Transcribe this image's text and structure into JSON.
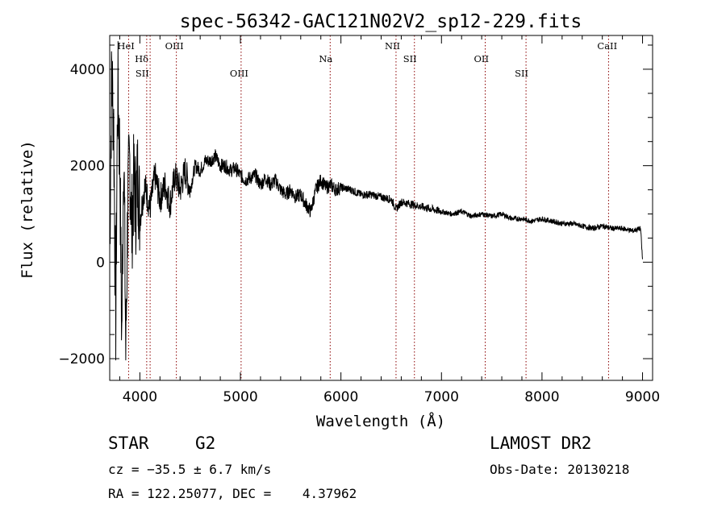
{
  "chart_data": {
    "type": "line",
    "title": "spec-56342-GAC121N02V2_sp12-229.fits",
    "xlabel": "Wavelength (Å)",
    "ylabel": "Flux (relative)",
    "xlim": [
      3700,
      9100
    ],
    "ylim": [
      -2450,
      4700
    ],
    "xticks": [
      4000,
      5000,
      6000,
      7000,
      8000,
      9000
    ],
    "xtick_labels": [
      "4000",
      "5000",
      "6000",
      "7000",
      "8000",
      "9000"
    ],
    "yticks": [
      -2000,
      0,
      2000,
      4000
    ],
    "ytick_labels": [
      "−2000",
      "0",
      "2000",
      "4000"
    ],
    "line_color": "#000000",
    "marker_color": "#8b0000",
    "series": [
      {
        "x": [
          3700,
          3720,
          3740,
          3760,
          3780,
          3800,
          3820,
          3840,
          3860,
          3880,
          3900,
          3920,
          3940,
          3960,
          3980,
          4000,
          4050,
          4100,
          4150,
          4200,
          4250,
          4300,
          4350,
          4400,
          4450,
          4500,
          4550,
          4600,
          4650,
          4700,
          4750,
          4800,
          4850,
          4900,
          4950,
          5000,
          5050,
          5100,
          5150,
          5200,
          5250,
          5300,
          5350,
          5400,
          5450,
          5500,
          5550,
          5600,
          5650,
          5700,
          5750,
          5800,
          5850,
          5900,
          5950,
          6000,
          6100,
          6200,
          6300,
          6400,
          6500,
          6550,
          6600,
          6700,
          6800,
          6900,
          7000,
          7100,
          7200,
          7300,
          7400,
          7500,
          7600,
          7700,
          7800,
          7900,
          8000,
          8100,
          8200,
          8300,
          8400,
          8500,
          8600,
          8700,
          8800,
          8900,
          8980,
          9000
        ],
        "y": [
          300,
          4000,
          2800,
          -1200,
          3700,
          2200,
          -1500,
          2600,
          -1900,
          1300,
          2100,
          700,
          1700,
          1200,
          1900,
          900,
          1600,
          1100,
          1800,
          1300,
          1600,
          1200,
          1800,
          1500,
          1900,
          1500,
          2000,
          1900,
          2100,
          2100,
          2200,
          2000,
          2000,
          1900,
          1950,
          1800,
          1700,
          1750,
          1800,
          1600,
          1750,
          1600,
          1700,
          1500,
          1400,
          1500,
          1350,
          1400,
          1200,
          1050,
          1500,
          1700,
          1550,
          1600,
          1500,
          1550,
          1500,
          1400,
          1400,
          1350,
          1300,
          1100,
          1250,
          1200,
          1150,
          1100,
          1050,
          1000,
          1050,
          950,
          1000,
          950,
          1000,
          900,
          900,
          850,
          900,
          850,
          800,
          800,
          750,
          700,
          750,
          700,
          700,
          650,
          700,
          50
        ]
      }
    ],
    "line_markers": [
      {
        "label": "HeI",
        "x": 3888,
        "row": 0,
        "side": "right"
      },
      {
        "label": "Hδ",
        "x": 4102,
        "row": 1,
        "side": "left"
      },
      {
        "label": "SII",
        "x": 4068,
        "row": 2,
        "side": "right"
      },
      {
        "label": "OIII",
        "x": 4363,
        "row": 0,
        "side": "right"
      },
      {
        "label": "OIII",
        "x": 5007,
        "row": 2,
        "side": "right"
      },
      {
        "label": "Na",
        "x": 5893,
        "row": 1,
        "side": "right"
      },
      {
        "label": "NII",
        "x": 6548,
        "row": 0,
        "side": "right"
      },
      {
        "label": "SII",
        "x": 6731,
        "row": 1,
        "side": "right"
      },
      {
        "label": "OII",
        "x": 7435,
        "row": 1,
        "side": "right"
      },
      {
        "label": "SII",
        "x": 7841,
        "row": 2,
        "side": "right"
      },
      {
        "label": "CaII",
        "x": 8662,
        "row": 0,
        "side": "right"
      }
    ]
  },
  "info": {
    "object_class": "STAR",
    "subclass": "G2",
    "survey": "LAMOST DR2",
    "cz": "cz = −35.5 ± 6.7 km/s",
    "obs_date": "Obs-Date: 20130218",
    "coords": "RA = 122.25077, DEC =    4.37962"
  }
}
